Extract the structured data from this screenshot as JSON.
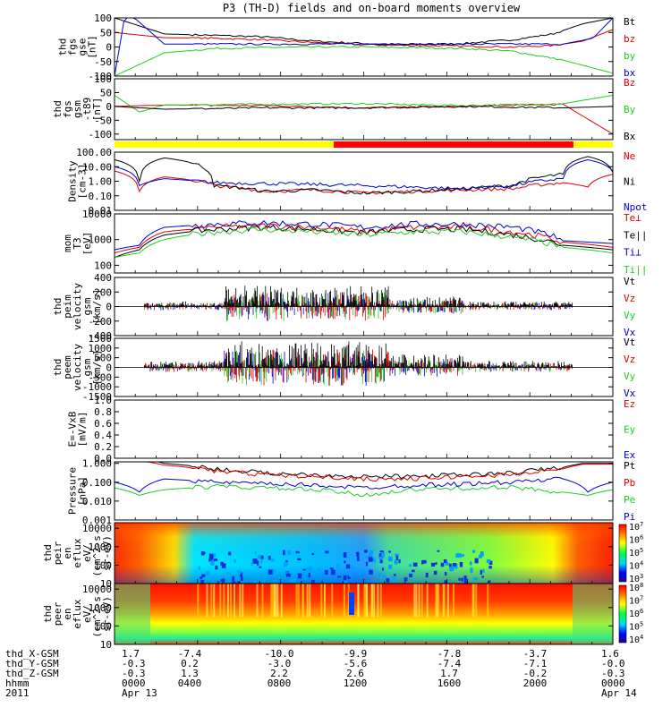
{
  "title": "P3 (TH-D) fields and on-board moments overview",
  "chart_data": [
    {
      "type": "line",
      "id": "fgs_gse",
      "ylabel": [
        "thd",
        "fgs",
        "gse",
        "[nT]"
      ],
      "ylim": [
        -100,
        100
      ],
      "yticks": [
        -100,
        -50,
        0,
        50,
        100
      ],
      "series": [
        {
          "name": "Bt",
          "color": "#000000",
          "x": [
            0,
            0.1,
            0.2,
            0.3,
            0.4,
            0.5,
            0.6,
            0.7,
            0.8,
            0.88,
            0.94,
            1.0
          ],
          "y": [
            100,
            45,
            40,
            35,
            20,
            12,
            8,
            12,
            25,
            45,
            80,
            100
          ]
        },
        {
          "name": "bz",
          "color": "#e00000",
          "x": [
            0,
            0.1,
            0.2,
            0.3,
            0.4,
            0.5,
            0.6,
            0.7,
            0.8,
            0.88,
            0.94,
            1.0
          ],
          "y": [
            50,
            32,
            30,
            25,
            15,
            8,
            5,
            3,
            0,
            5,
            20,
            60
          ]
        },
        {
          "name": "by",
          "color": "#22cc22",
          "x": [
            0,
            0.05,
            0.1,
            0.2,
            0.3,
            0.4,
            0.5,
            0.6,
            0.7,
            0.8,
            0.9,
            1.0
          ],
          "y": [
            -100,
            -60,
            -20,
            -5,
            -2,
            0,
            0,
            -2,
            -5,
            -15,
            -45,
            -90
          ]
        },
        {
          "name": "bx",
          "color": "#0000cc",
          "x": [
            0,
            0.02,
            0.04,
            0.1,
            0.5,
            0.9,
            0.96,
            1.0
          ],
          "y": [
            -100,
            100,
            100,
            10,
            10,
            10,
            30,
            100
          ]
        }
      ]
    },
    {
      "type": "line",
      "id": "fgs_gsm",
      "ylabel": [
        "thd",
        "fgs",
        "gsm",
        "-t89",
        "[nT]"
      ],
      "ylim": [
        -120,
        100
      ],
      "yticks": [
        -100,
        -50,
        0,
        50,
        100
      ],
      "series": [
        {
          "name": "Bz",
          "color": "#e00000",
          "x": [
            0,
            0.1,
            0.3,
            0.5,
            0.7,
            0.9,
            1.0
          ],
          "y": [
            0,
            5,
            3,
            -5,
            0,
            8,
            -100
          ]
        },
        {
          "name": "By",
          "color": "#22cc22",
          "x": [
            0,
            0.05,
            0.1,
            0.3,
            0.5,
            0.7,
            0.9,
            1.0
          ],
          "y": [
            40,
            -20,
            5,
            8,
            10,
            3,
            10,
            40
          ]
        },
        {
          "name": "Bx",
          "color": "#000000",
          "x": [
            0,
            0.1,
            0.3,
            0.5,
            0.7,
            0.9,
            1.0
          ],
          "y": [
            0,
            -10,
            -5,
            -5,
            0,
            -5,
            0
          ]
        }
      ]
    },
    {
      "type": "line",
      "id": "density",
      "scale": "log",
      "ylabel": [
        "Density",
        "[cm-3]"
      ],
      "ylim": [
        0.01,
        100
      ],
      "yticks": [
        0.01,
        0.1,
        1,
        10,
        100
      ],
      "yticklabels": [
        "0.01",
        "0.10",
        "1.00",
        "10.00",
        "100.00"
      ],
      "series": [
        {
          "name": "Ne",
          "color": "#e00000",
          "x": [
            0,
            0.05,
            0.1,
            0.2,
            0.3,
            0.4,
            0.5,
            0.6,
            0.7,
            0.8,
            0.9,
            0.95,
            1.0
          ],
          "y": [
            5,
            0.2,
            2,
            0.5,
            0.2,
            0.25,
            0.15,
            0.2,
            0.25,
            0.3,
            0.8,
            0.4,
            3
          ]
        },
        {
          "name": "Ni",
          "color": "#000000",
          "x": [
            0,
            0.05,
            0.1,
            0.2,
            0.3,
            0.4,
            0.5,
            0.6,
            0.7,
            0.8,
            0.9,
            0.95,
            1.0
          ],
          "y": [
            30,
            1,
            40,
            0.5,
            0.2,
            0.25,
            0.15,
            0.2,
            0.3,
            0.5,
            3,
            50,
            4
          ]
        },
        {
          "name": "Npot",
          "color": "#0000cc",
          "x": [
            0,
            0.05,
            0.1,
            0.2,
            0.5,
            0.7,
            0.8,
            0.9,
            0.95,
            1.0
          ],
          "y": [
            10,
            0.5,
            1.5,
            0.8,
            0.5,
            0.3,
            0.5,
            1.5,
            30,
            5
          ]
        }
      ]
    },
    {
      "type": "line",
      "id": "moms_t3",
      "scale": "log",
      "ylabel": [
        "mom",
        "T3",
        "[eV]"
      ],
      "ylim": [
        50,
        10000
      ],
      "yticks": [
        100,
        1000,
        10000
      ],
      "yticklabels": [
        "100",
        "1000",
        "10000"
      ],
      "series": [
        {
          "name": "Te⊥",
          "color": "#e00000",
          "x": [
            0,
            0.05,
            0.1,
            0.2,
            0.3,
            0.4,
            0.5,
            0.6,
            0.7,
            0.8,
            0.9,
            1.0
          ],
          "y": [
            300,
            500,
            2000,
            3000,
            3500,
            3000,
            2000,
            3000,
            3000,
            2000,
            800,
            500
          ]
        },
        {
          "name": "Te||",
          "color": "#000000",
          "x": [
            0,
            0.05,
            0.1,
            0.2,
            0.3,
            0.4,
            0.5,
            0.6,
            0.7,
            0.8,
            0.9,
            1.0
          ],
          "y": [
            200,
            400,
            1500,
            2500,
            3000,
            2500,
            1800,
            2500,
            2500,
            1500,
            600,
            400
          ]
        },
        {
          "name": "Ti⊥",
          "color": "#0000cc",
          "x": [
            0,
            0.05,
            0.1,
            0.2,
            0.3,
            0.4,
            0.5,
            0.6,
            0.7,
            0.8,
            0.9,
            1.0
          ],
          "y": [
            400,
            600,
            3000,
            4000,
            4500,
            4000,
            3000,
            4000,
            4000,
            3000,
            900,
            700
          ]
        },
        {
          "name": "Ti||",
          "color": "#22cc22",
          "x": [
            0,
            0.05,
            0.1,
            0.2,
            0.3,
            0.4,
            0.5,
            0.6,
            0.7,
            0.8,
            0.9,
            1.0
          ],
          "y": [
            200,
            300,
            1000,
            2000,
            2500,
            2000,
            1500,
            2000,
            2000,
            1200,
            500,
            300
          ]
        }
      ]
    },
    {
      "type": "line",
      "id": "peim_velocity",
      "ylabel": [
        "thd",
        "peim",
        "velocity",
        "gsm",
        "[km/s]"
      ],
      "ylim": [
        -400,
        400
      ],
      "yticks": [
        -400,
        -200,
        0,
        200,
        400
      ],
      "series": [
        {
          "name": "Vt",
          "color": "#000000"
        },
        {
          "name": "Vz",
          "color": "#e00000"
        },
        {
          "name": "Vy",
          "color": "#22cc22"
        },
        {
          "name": "Vx",
          "color": "#0000cc"
        }
      ]
    },
    {
      "type": "line",
      "id": "peem_velocity",
      "ylabel": [
        "thd",
        "peem",
        "velocity",
        "gsm",
        "[km/s]"
      ],
      "ylim": [
        -1500,
        1500
      ],
      "yticks": [
        -1500,
        -1000,
        -500,
        0,
        500,
        1000,
        1500
      ],
      "series": [
        {
          "name": "Vt",
          "color": "#000000"
        },
        {
          "name": "Vz",
          "color": "#e00000"
        },
        {
          "name": "Vy",
          "color": "#22cc22"
        },
        {
          "name": "Vx",
          "color": "#0000cc"
        }
      ]
    },
    {
      "type": "line",
      "id": "e_vxb",
      "ylabel": [
        "E=-VxB",
        "[mV/m]"
      ],
      "ylim": [
        0,
        1
      ],
      "yticks": [
        0.0,
        0.2,
        0.4,
        0.6,
        0.8,
        1.0
      ],
      "yticklabels": [
        "0.0",
        "0.2",
        "0.4",
        "0.6",
        "0.8",
        "1.0"
      ],
      "series": [
        {
          "name": "Ez",
          "color": "#e00000"
        },
        {
          "name": "Ey",
          "color": "#22cc22"
        },
        {
          "name": "Ex",
          "color": "#0000cc"
        }
      ]
    },
    {
      "type": "line",
      "id": "pressure",
      "scale": "log",
      "ylabel": [
        "Pressure",
        "[nPa]"
      ],
      "ylim": [
        0.001,
        1.2
      ],
      "yticks": [
        0.001,
        0.01,
        0.1,
        1
      ],
      "yticklabels": [
        "0.001",
        "0.010",
        "0.100",
        "1.000"
      ],
      "series": [
        {
          "name": "Pt",
          "color": "#000000",
          "x": [
            0.04,
            0.1,
            0.2,
            0.3,
            0.4,
            0.5,
            0.6,
            0.7,
            0.8,
            0.9,
            0.94
          ],
          "y": [
            2,
            1.0,
            0.5,
            0.3,
            0.25,
            0.2,
            0.2,
            0.25,
            0.3,
            0.6,
            1.0
          ]
        },
        {
          "name": "Pb",
          "color": "#e00000",
          "x": [
            0.04,
            0.1,
            0.2,
            0.3,
            0.4,
            0.5,
            0.6,
            0.7,
            0.8,
            0.9,
            0.94
          ],
          "y": [
            1.5,
            0.8,
            0.4,
            0.25,
            0.2,
            0.15,
            0.15,
            0.2,
            0.25,
            0.5,
            0.9
          ]
        },
        {
          "name": "Pe",
          "color": "#22cc22",
          "x": [
            0,
            0.05,
            0.1,
            0.2,
            0.3,
            0.4,
            0.5,
            0.6,
            0.7,
            0.8,
            0.9,
            0.95,
            1.0
          ],
          "y": [
            0.05,
            0.02,
            0.04,
            0.06,
            0.05,
            0.04,
            0.02,
            0.04,
            0.05,
            0.05,
            0.03,
            0.02,
            0.04
          ]
        },
        {
          "name": "Pi",
          "color": "#0000cc",
          "x": [
            0,
            0.05,
            0.1,
            0.2,
            0.3,
            0.4,
            0.5,
            0.6,
            0.7,
            0.8,
            0.9,
            0.95,
            1.0
          ],
          "y": [
            0.1,
            0.03,
            0.15,
            0.1,
            0.08,
            0.07,
            0.05,
            0.07,
            0.08,
            0.1,
            0.15,
            0.03,
            0.1
          ]
        }
      ]
    },
    {
      "type": "heatmap",
      "id": "peir_spec",
      "ylabel": [
        "thd",
        "peir",
        "en",
        "eflux",
        "eV/",
        "(cm^2-s-",
        "sr-eV)"
      ],
      "ylim": [
        10,
        20000
      ],
      "yticks": [
        10,
        100,
        1000,
        10000
      ],
      "yticklabels": [
        "10",
        "100",
        "1000",
        "10000"
      ],
      "colorbar": {
        "ticks": [
          "10^7",
          "10^6",
          "10^5",
          "10^4",
          "10^3"
        ]
      }
    },
    {
      "type": "heatmap",
      "id": "peer_spec",
      "ylabel": [
        "thd",
        "peer",
        "en",
        "eflux",
        "eV/",
        "(cm^2-s-",
        "sr-eV)"
      ],
      "ylim": [
        10,
        20000
      ],
      "yticks": [
        10,
        100,
        1000,
        10000
      ],
      "yticklabels": [
        "10",
        "100",
        "1000",
        "10000"
      ],
      "colorbar": {
        "ticks": [
          "10^8",
          "10^7",
          "10^6",
          "10^5",
          "10^4"
        ]
      }
    }
  ],
  "xaxis": {
    "rows": [
      {
        "label": "thd_X-GSM",
        "values": [
          "1.7",
          "-7.4",
          "-10.0",
          "-9.9",
          "-7.8",
          "-3.7",
          "1.6"
        ]
      },
      {
        "label": "thd_Y-GSM",
        "values": [
          "-0.3",
          "0.2",
          "-3.0",
          "-5.6",
          "-7.4",
          "-7.1",
          "-0.0"
        ]
      },
      {
        "label": "thd_Z-GSM",
        "values": [
          "-0.3",
          "1.3",
          "2.2",
          "2.6",
          "1.7",
          "-0.2",
          "-0.3"
        ]
      },
      {
        "label": "hhmm",
        "values": [
          "0000",
          "0400",
          "0800",
          "1200",
          "1600",
          "2000",
          "0000"
        ]
      },
      {
        "label": "2011",
        "values": [
          "Apr 13",
          "",
          "",
          "",
          "",
          "",
          "Apr 14"
        ]
      }
    ]
  }
}
